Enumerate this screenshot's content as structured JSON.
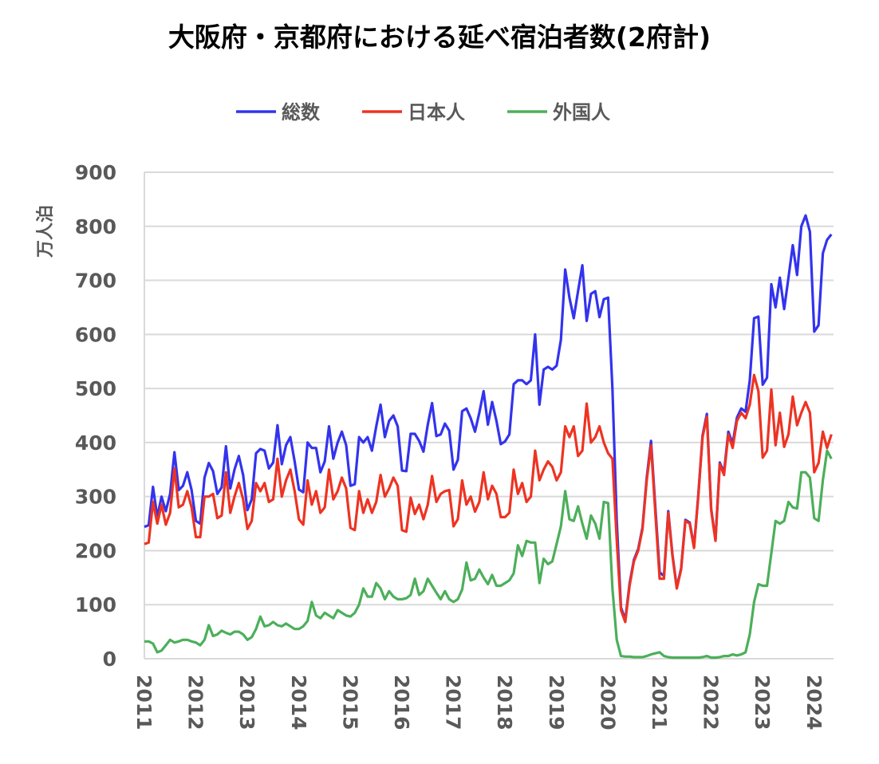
{
  "chart_data": {
    "type": "line",
    "title": "大阪府・京都府における延べ宿泊者数(2府計)",
    "ylabel": "万人泊",
    "xlabel": "",
    "ylim": [
      0,
      900
    ],
    "yticks": [
      "0",
      "100",
      "200",
      "300",
      "400",
      "500",
      "600",
      "700",
      "800",
      "900"
    ],
    "ytick_values": [
      0,
      100,
      200,
      300,
      400,
      500,
      600,
      700,
      800,
      900
    ],
    "xticks": [
      "2011",
      "2012",
      "2013",
      "2014",
      "2015",
      "2016",
      "2017",
      "2018",
      "2019",
      "2020",
      "2021",
      "2022",
      "2023",
      "2024"
    ],
    "x_start": "2011-01",
    "x_frequency": "monthly",
    "grid": true,
    "legend_position": "top",
    "series": [
      {
        "name": "総数",
        "color": "#3333ee",
        "values": [
          244,
          247,
          318,
          262,
          300,
          273,
          305,
          382,
          312,
          320,
          345,
          312,
          255,
          250,
          335,
          362,
          347,
          305,
          317,
          393,
          315,
          350,
          375,
          340,
          275,
          295,
          380,
          388,
          385,
          352,
          363,
          432,
          360,
          395,
          410,
          365,
          313,
          308,
          400,
          390,
          390,
          345,
          365,
          430,
          370,
          400,
          420,
          395,
          320,
          323,
          410,
          400,
          410,
          385,
          430,
          470,
          410,
          440,
          450,
          430,
          348,
          347,
          416,
          416,
          403,
          383,
          433,
          473,
          412,
          415,
          435,
          422,
          350,
          368,
          458,
          463,
          445,
          420,
          455,
          495,
          433,
          475,
          440,
          397,
          402,
          415,
          508,
          515,
          515,
          508,
          515,
          600,
          470,
          535,
          540,
          535,
          542,
          590,
          720,
          668,
          630,
          680,
          728,
          625,
          675,
          680,
          632,
          665,
          668,
          500,
          255,
          95,
          72,
          139,
          183,
          203,
          243,
          335,
          403,
          280,
          160,
          153,
          273,
          192,
          132,
          167,
          257,
          252,
          207,
          302,
          413,
          453,
          277,
          220,
          363,
          345,
          420,
          398,
          446,
          463,
          457,
          515,
          630,
          633,
          507,
          520,
          693,
          650,
          705,
          647,
          705,
          765,
          710,
          800,
          820,
          790,
          605,
          617,
          750,
          775,
          785
        ]
      },
      {
        "name": "日本人",
        "color": "#ee3322",
        "values": [
          212,
          215,
          290,
          250,
          285,
          248,
          270,
          352,
          280,
          285,
          310,
          280,
          225,
          225,
          300,
          300,
          305,
          260,
          265,
          345,
          270,
          300,
          325,
          295,
          240,
          255,
          325,
          310,
          325,
          290,
          295,
          370,
          300,
          330,
          350,
          310,
          258,
          248,
          330,
          285,
          310,
          270,
          280,
          350,
          295,
          310,
          335,
          315,
          242,
          238,
          310,
          270,
          295,
          270,
          290,
          340,
          300,
          315,
          335,
          320,
          238,
          235,
          298,
          268,
          285,
          258,
          285,
          338,
          290,
          305,
          310,
          312,
          245,
          258,
          330,
          285,
          300,
          272,
          290,
          345,
          295,
          320,
          305,
          262,
          262,
          270,
          350,
          305,
          325,
          290,
          300,
          385,
          330,
          350,
          365,
          355,
          330,
          345,
          430,
          410,
          430,
          375,
          385,
          472,
          400,
          410,
          430,
          400,
          380,
          370,
          220,
          90,
          68,
          135,
          180,
          200,
          240,
          330,
          395,
          270,
          148,
          148,
          270,
          190,
          130,
          165,
          255,
          250,
          205,
          300,
          410,
          448,
          275,
          218,
          360,
          340,
          415,
          390,
          440,
          455,
          445,
          470,
          525,
          495,
          372,
          385,
          498,
          395,
          455,
          392,
          415,
          485,
          432,
          455,
          475,
          455,
          345,
          362,
          420,
          390,
          415
        ]
      },
      {
        "name": "外国人",
        "color": "#4caf5a",
        "values": [
          32,
          32,
          28,
          12,
          15,
          25,
          35,
          30,
          32,
          35,
          35,
          32,
          30,
          25,
          35,
          62,
          42,
          45,
          52,
          48,
          45,
          50,
          50,
          45,
          35,
          40,
          55,
          78,
          60,
          62,
          68,
          62,
          60,
          65,
          60,
          55,
          55,
          60,
          70,
          105,
          80,
          75,
          85,
          80,
          75,
          90,
          85,
          80,
          78,
          85,
          100,
          130,
          115,
          115,
          140,
          130,
          110,
          125,
          115,
          110,
          110,
          112,
          118,
          148,
          118,
          125,
          148,
          135,
          122,
          110,
          125,
          110,
          105,
          110,
          128,
          178,
          145,
          148,
          165,
          150,
          138,
          155,
          135,
          135,
          140,
          145,
          158,
          210,
          190,
          218,
          215,
          215,
          140,
          185,
          175,
          180,
          212,
          245,
          310,
          258,
          255,
          282,
          250,
          222,
          265,
          250,
          222,
          290,
          288,
          130,
          35,
          5,
          4,
          4,
          3,
          3,
          3,
          5,
          8,
          10,
          12,
          5,
          3,
          2,
          2,
          2,
          2,
          2,
          2,
          2,
          3,
          5,
          2,
          2,
          3,
          5,
          5,
          8,
          6,
          8,
          12,
          45,
          105,
          138,
          135,
          135,
          195,
          255,
          250,
          255,
          290,
          280,
          278,
          345,
          345,
          335,
          260,
          255,
          330,
          385,
          370
        ]
      }
    ]
  }
}
